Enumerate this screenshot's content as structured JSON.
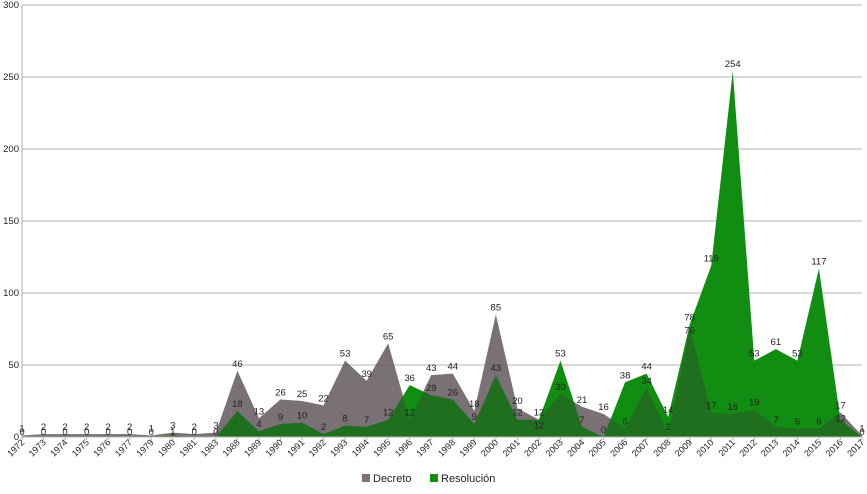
{
  "chart_data": {
    "type": "area",
    "categories": [
      "1972",
      "1973",
      "1974",
      "1975",
      "1976",
      "1977",
      "1979",
      "1980",
      "1981",
      "1983",
      "1988",
      "1989",
      "1990",
      "1991",
      "1992",
      "1993",
      "1994",
      "1995",
      "1996",
      "1997",
      "1998",
      "1999",
      "2000",
      "2001",
      "2002",
      "2003",
      "2004",
      "2005",
      "2006",
      "2007",
      "2008",
      "2009",
      "2010",
      "2011",
      "2012",
      "2013",
      "2014",
      "2015",
      "2016",
      "2017"
    ],
    "series": [
      {
        "name": "Decreto",
        "color": "#7f6f7a",
        "values": [
          1,
          2,
          2,
          2,
          2,
          2,
          1,
          3,
          2,
          3,
          46,
          13,
          26,
          25,
          22,
          53,
          39,
          65,
          12,
          43,
          44,
          18,
          85,
          20,
          12,
          30,
          21,
          16,
          6,
          34,
          2,
          76,
          17,
          16,
          19,
          7,
          6,
          6,
          17,
          1
        ]
      },
      {
        "name": "Resolución",
        "color": "#118d11",
        "values": [
          0,
          0,
          0,
          0,
          0,
          0,
          0,
          1,
          0,
          0,
          18,
          4,
          9,
          10,
          2,
          8,
          7,
          12,
          36,
          29,
          26,
          9,
          43,
          12,
          12,
          53,
          7,
          0,
          38,
          44,
          14,
          78,
          119,
          254,
          53,
          61,
          53,
          117,
          12,
          0
        ]
      }
    ],
    "value_labels": {
      "Decreto": [
        "1",
        "2",
        "2",
        "2",
        "2",
        "2",
        "1",
        "3",
        "2",
        "3",
        "46",
        "13",
        "26",
        "25",
        "22",
        "53",
        "39",
        "65",
        "12",
        "43",
        "44",
        "18",
        "85",
        "20",
        "12",
        "30",
        "21",
        "16",
        "6",
        "34",
        "2",
        "76",
        "17",
        "16",
        "19",
        "7",
        "6",
        "6",
        "17",
        "1"
      ],
      "Resolución": [
        "0",
        "0",
        "0",
        "0",
        "0",
        "0",
        "0",
        "1",
        "0",
        "0",
        "18",
        "4",
        "9",
        "10",
        "2",
        "8",
        "7",
        "12",
        "36",
        "29",
        "26",
        "9",
        "43",
        "12",
        "12",
        "53",
        "7",
        "0",
        "38",
        "44",
        "14",
        "78",
        "119",
        "254",
        "53",
        "61",
        "53",
        "117",
        "12",
        "0"
      ]
    },
    "yticks": [
      "0",
      "50",
      "100",
      "150",
      "200",
      "250",
      "300"
    ],
    "ylim": [
      0,
      300
    ],
    "title": "",
    "xlabel": "",
    "ylabel": "",
    "legend_position": "bottom-center",
    "grid": "horizontal"
  }
}
